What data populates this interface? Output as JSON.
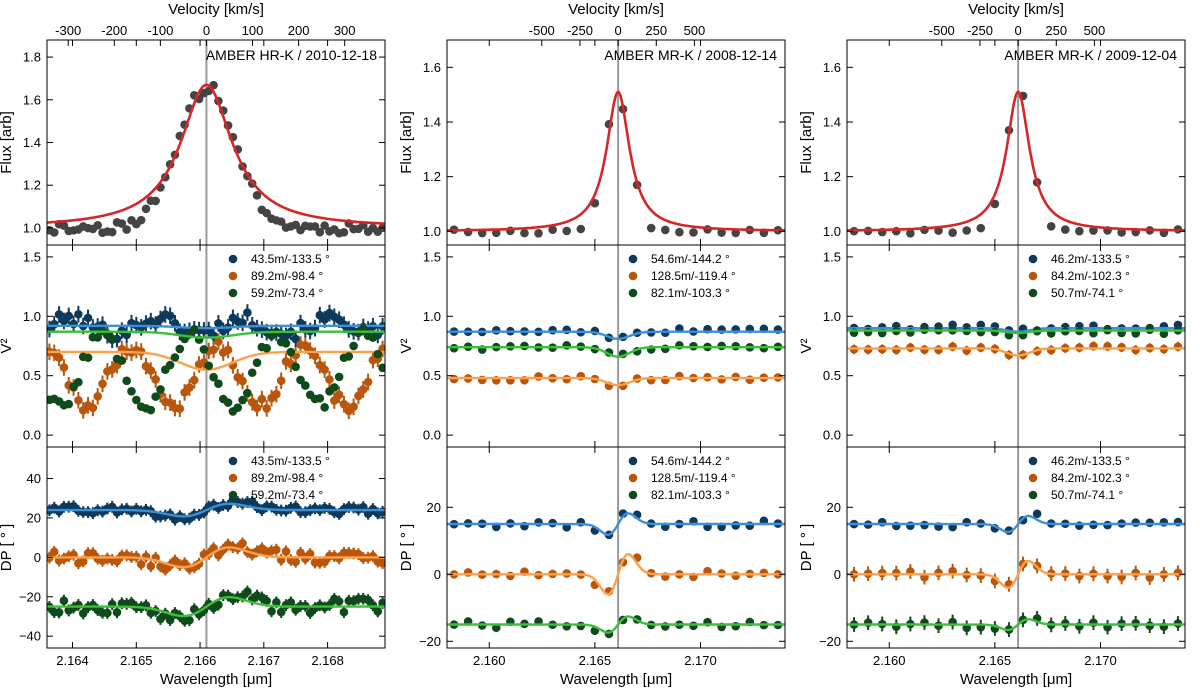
{
  "colors": {
    "obs_flux": "#444444",
    "model_flux": "#d62728",
    "marker_blue": "#0d3a5c",
    "marker_orange": "#b8560b",
    "marker_green": "#0f4a1a",
    "model_blue": "#3d8fd8",
    "model_orange": "#ffa04a",
    "model_green": "#3cbf3c",
    "center_line": "#9a9a9a"
  },
  "chart_data": [
    {
      "name": "column-1",
      "type": "scatter",
      "title": "AMBER HR-K / 2010-12-18",
      "x_center": 2.1661,
      "xlim": [
        2.1636,
        2.1689
      ],
      "xticks": [
        2.164,
        2.165,
        2.166,
        2.167,
        2.168
      ],
      "xticklabels": [
        "2.164",
        "2.165",
        "2.166",
        "2.167",
        "2.168"
      ],
      "xlabel": "Wavelength [μm]",
      "velocity_axis": {
        "label": "Velocity [km/s]",
        "ticks": [
          -300,
          -200,
          -100,
          0,
          100,
          200,
          300
        ],
        "ticklabels": [
          "-300",
          "-200",
          "-100",
          "0",
          "100",
          "200",
          "300"
        ]
      },
      "flux": {
        "ylabel": "Flux [arb]",
        "ylim": [
          0.92,
          1.88
        ],
        "yticks": [
          1.0,
          1.2,
          1.4,
          1.6,
          1.8
        ],
        "yticklabels": [
          "1.0",
          "1.2",
          "1.4",
          "1.6",
          "1.8"
        ],
        "peak": 0.67,
        "width": 0.00045,
        "offset": 1.0
      },
      "v2": {
        "ylabel": "V²",
        "ylim": [
          -0.1,
          1.6
        ],
        "yticks": [
          0.0,
          0.5,
          1.0,
          1.5
        ],
        "yticklabels": [
          "0.0",
          "0.5",
          "1.0",
          "1.5"
        ],
        "series": [
          {
            "name": "43.5m/-133.5 °",
            "level": 0.92,
            "model": 0.92,
            "dip": 0.02,
            "amp": 0.1,
            "error": true
          },
          {
            "name": "89.2m/-98.4 °",
            "level": 0.5,
            "model": 0.7,
            "dip": 0.15,
            "amp": 0.25,
            "error": true
          },
          {
            "name": "59.2m/-73.4 °",
            "level": 0.55,
            "model": 0.87,
            "dip": 0.05,
            "amp": 0.3,
            "error": false
          }
        ]
      },
      "dp": {
        "ylabel": "DP [ ° ]",
        "ylim": [
          -46,
          56
        ],
        "yticks": [
          -40,
          -20,
          0,
          20,
          40
        ],
        "yticklabels": [
          "−40",
          "−20",
          "0",
          "20",
          "40"
        ],
        "series": [
          {
            "name": "43.5m/-133.5 °",
            "level": 24,
            "amp": 4,
            "error": true
          },
          {
            "name": "89.2m/-98.4 °",
            "level": 0,
            "amp": 5,
            "error": true
          },
          {
            "name": "59.2m/-73.4 °",
            "level": -25,
            "amp": 6,
            "error": true
          }
        ]
      }
    },
    {
      "name": "column-2",
      "type": "scatter",
      "title": "AMBER MR-K / 2008-12-14",
      "x_center": 2.1661,
      "xlim": [
        2.158,
        2.174
      ],
      "xticks": [
        2.16,
        2.165,
        2.17
      ],
      "xticklabels": [
        "2.160",
        "2.165",
        "2.170"
      ],
      "xlabel": "Wavelength [μm]",
      "velocity_axis": {
        "label": "Velocity [km/s]",
        "ticks": [
          -500,
          -250,
          0,
          250,
          500
        ],
        "ticklabels": [
          "-500",
          "-250",
          "0",
          "250",
          "500"
        ]
      },
      "flux": {
        "ylabel": "Flux [arb]",
        "ylim": [
          0.95,
          1.7
        ],
        "yticks": [
          1.0,
          1.2,
          1.4,
          1.6
        ],
        "yticklabels": [
          "1.0",
          "1.2",
          "1.4",
          "1.6"
        ],
        "peak": 0.51,
        "width": 0.0006,
        "offset": 1.0
      },
      "v2": {
        "ylabel": "V²",
        "ylim": [
          -0.1,
          1.6
        ],
        "yticks": [
          0.0,
          0.5,
          1.0,
          1.5
        ],
        "yticklabels": [
          "0.0",
          "0.5",
          "1.0",
          "1.5"
        ],
        "series": [
          {
            "name": "54.6m/-144.2 °",
            "level": 0.88,
            "model": 0.87,
            "dip": 0.06,
            "amp": 0.02,
            "error": false
          },
          {
            "name": "128.5m/-119.4 °",
            "level": 0.48,
            "model": 0.48,
            "dip": 0.06,
            "amp": 0.01,
            "error": false
          },
          {
            "name": "82.1m/-103.3 °",
            "level": 0.74,
            "model": 0.74,
            "dip": 0.08,
            "amp": 0.01,
            "error": false
          }
        ]
      },
      "dp": {
        "ylabel": "DP [ ° ]",
        "ylim": [
          -22,
          38
        ],
        "yticks": [
          -20,
          0,
          20
        ],
        "yticklabels": [
          "−20",
          "0",
          "20"
        ],
        "series": [
          {
            "name": "54.6m/-144.2 °",
            "level": 15,
            "amp": 4,
            "error": false
          },
          {
            "name": "128.5m/-119.4 °",
            "level": 0,
            "amp": 6,
            "error": false
          },
          {
            "name": "82.1m/-103.3 °",
            "level": -15,
            "amp": 3,
            "error": false
          }
        ]
      }
    },
    {
      "name": "column-3",
      "type": "scatter",
      "title": "AMBER MR-K / 2009-12-04",
      "x_center": 2.1661,
      "xlim": [
        2.158,
        2.174
      ],
      "xticks": [
        2.16,
        2.165,
        2.17
      ],
      "xticklabels": [
        "2.160",
        "2.165",
        "2.170"
      ],
      "xlabel": "Wavelength [μm]",
      "velocity_axis": {
        "label": "Velocity [km/s]",
        "ticks": [
          -500,
          -250,
          0,
          250,
          500
        ],
        "ticklabels": [
          "-500",
          "-250",
          "0",
          "250",
          "500"
        ]
      },
      "flux": {
        "ylabel": "Flux [arb]",
        "ylim": [
          0.95,
          1.7
        ],
        "yticks": [
          1.0,
          1.2,
          1.4,
          1.6
        ],
        "yticklabels": [
          "1.0",
          "1.2",
          "1.4",
          "1.6"
        ],
        "peak": 0.51,
        "width": 0.0006,
        "offset": 1.0
      },
      "v2": {
        "ylabel": "V²",
        "ylim": [
          -0.1,
          1.6
        ],
        "yticks": [
          0.0,
          0.5,
          1.0,
          1.5
        ],
        "yticklabels": [
          "0.0",
          "0.5",
          "1.0",
          "1.5"
        ],
        "series": [
          {
            "name": "46.2m/-133.5 °",
            "level": 0.91,
            "model": 0.9,
            "dip": 0.03,
            "amp": 0.03,
            "error": false
          },
          {
            "name": "84.2m/-102.3 °",
            "level": 0.73,
            "model": 0.73,
            "dip": 0.06,
            "amp": 0.02,
            "error": true
          },
          {
            "name": "50.7m/-74.1 °",
            "level": 0.87,
            "model": 0.88,
            "dip": 0.02,
            "amp": 0.02,
            "error": false
          }
        ]
      },
      "dp": {
        "ylabel": "DP [ ° ]",
        "ylim": [
          -22,
          38
        ],
        "yticks": [
          -20,
          0,
          20
        ],
        "yticklabels": [
          "−20",
          "0",
          "20"
        ],
        "series": [
          {
            "name": "46.2m/-133.5 °",
            "level": 15,
            "amp": 3,
            "error": false
          },
          {
            "name": "84.2m/-102.3 °",
            "level": 0,
            "amp": 4,
            "error": true
          },
          {
            "name": "50.7m/-74.1 °",
            "level": -15,
            "amp": 2,
            "error": true
          }
        ]
      }
    }
  ]
}
